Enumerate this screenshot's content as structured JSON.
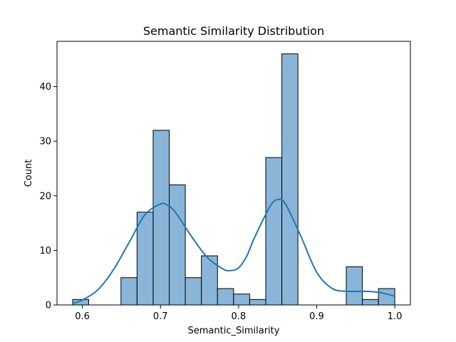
{
  "chart_data": {
    "type": "bar",
    "title": "Semantic Similarity Distribution",
    "xlabel": "Semantic_Similarity",
    "ylabel": "Count",
    "xlim": [
      0.5675,
      1.02
    ],
    "ylim": [
      0,
      48.3
    ],
    "xticks": [
      0.6,
      0.7,
      0.8,
      0.9,
      1.0
    ],
    "xtick_labels": [
      "0.6",
      "0.7",
      "0.8",
      "0.9",
      "1.0"
    ],
    "yticks": [
      0,
      10,
      20,
      30,
      40
    ],
    "ytick_labels": [
      "0",
      "10",
      "20",
      "30",
      "40"
    ],
    "bin_edges": [
      0.5875,
      0.6081,
      0.6287,
      0.6494,
      0.67,
      0.6906,
      0.7112,
      0.7318,
      0.7524,
      0.773,
      0.7936,
      0.8142,
      0.8348,
      0.8554,
      0.876,
      0.8966,
      0.9172,
      0.9379,
      0.9585,
      0.9791,
      1.0
    ],
    "counts": [
      1,
      0,
      0,
      5,
      17,
      32,
      22,
      5,
      9,
      3,
      2,
      1,
      27,
      46,
      0,
      0,
      0,
      7,
      1,
      3
    ],
    "kde": {
      "x": [
        0.5875,
        0.6,
        0.62,
        0.64,
        0.66,
        0.68,
        0.7,
        0.71,
        0.72,
        0.74,
        0.76,
        0.78,
        0.79,
        0.8,
        0.81,
        0.82,
        0.84,
        0.85,
        0.86,
        0.88,
        0.9,
        0.92,
        0.94,
        0.96,
        0.98,
        1.0
      ],
      "y": [
        0.3,
        0.9,
        2.8,
        6.5,
        11.5,
        16.5,
        18.5,
        18.2,
        16.8,
        12.5,
        8.7,
        6.6,
        6.3,
        6.8,
        8.8,
        12.2,
        18.0,
        19.3,
        18.5,
        12.5,
        6.0,
        3.0,
        2.5,
        2.5,
        2.3,
        1.6
      ]
    },
    "bar_color": "#89b5d8",
    "bar_edge_color": "#000000",
    "kde_color": "#1f77b4",
    "grid": false
  }
}
